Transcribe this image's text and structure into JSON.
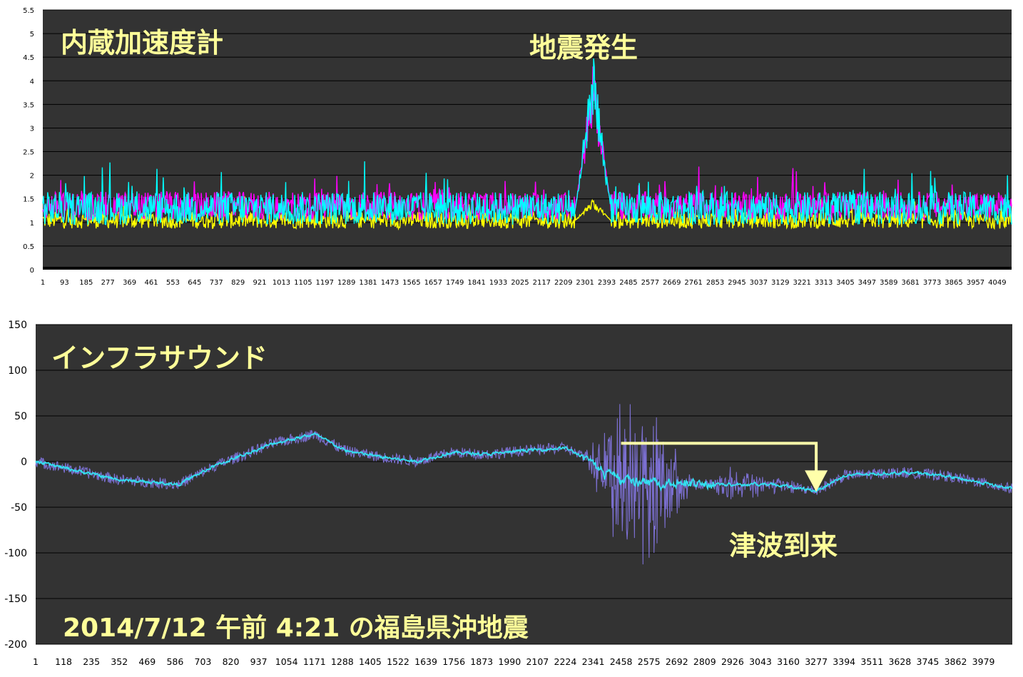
{
  "chart_data": [
    {
      "type": "line",
      "title": "内蔵加速度計",
      "annotations": [
        "地震発生"
      ],
      "ylim": [
        0,
        5.5
      ],
      "y_ticks": [
        "0",
        "0.5",
        "1",
        "1.5",
        "2",
        "2.5",
        "3",
        "3.5",
        "4",
        "4.5",
        "5",
        "5.5"
      ],
      "x_range": [
        1,
        4110
      ],
      "x_ticks": [
        "1",
        "93",
        "185",
        "277",
        "369",
        "461",
        "553",
        "645",
        "737",
        "829",
        "921",
        "1013",
        "1105",
        "1197",
        "1289",
        "1381",
        "1473",
        "1565",
        "1657",
        "1749",
        "1841",
        "1933",
        "2025",
        "2117",
        "2209",
        "2301",
        "2393",
        "2485",
        "2577",
        "2669",
        "2761",
        "2853",
        "2945",
        "3037",
        "3129",
        "3221",
        "3313",
        "3405",
        "3497",
        "3589",
        "3681",
        "3773",
        "3865",
        "3957",
        "4049"
      ],
      "grid": true,
      "series": [
        {
          "color": "#00ffff",
          "baseline": 1.3,
          "noise": 0.35,
          "event_peak": 4.6
        },
        {
          "color": "#ff00ff",
          "baseline": 1.35,
          "noise": 0.3,
          "event_peak": 4.4
        },
        {
          "color": "#ffff00",
          "baseline": 1.05,
          "noise": 0.18,
          "event_peak": 1.5
        }
      ],
      "event_x": [
        2260,
        2410
      ],
      "background": "#333333"
    },
    {
      "type": "line",
      "title": "インフラサウンド",
      "annotations": [
        "津波到来",
        "2014/7/12  午前 4:21 の福島県沖地震"
      ],
      "ylim": [
        -200,
        150
      ],
      "y_ticks": [
        "-200",
        "-150",
        "-100",
        "-50",
        "0",
        "50",
        "100",
        "150"
      ],
      "x_range": [
        1,
        4100
      ],
      "x_ticks": [
        "1",
        "118",
        "235",
        "352",
        "469",
        "586",
        "703",
        "820",
        "937",
        "1054",
        "1171",
        "1288",
        "1405",
        "1522",
        "1639",
        "1756",
        "1873",
        "1990",
        "2107",
        "2224",
        "2341",
        "2458",
        "2575",
        "2692",
        "2809",
        "2926",
        "3043",
        "3160",
        "3277",
        "3394",
        "3511",
        "3628",
        "3745",
        "3862",
        "3979"
      ],
      "grid": true,
      "trend_points": [
        [
          1,
          0
        ],
        [
          350,
          -20
        ],
        [
          600,
          -25
        ],
        [
          750,
          -5
        ],
        [
          1000,
          20
        ],
        [
          1171,
          30
        ],
        [
          1300,
          12
        ],
        [
          1450,
          5
        ],
        [
          1600,
          0
        ],
        [
          1750,
          10
        ],
        [
          1900,
          8
        ],
        [
          2050,
          12
        ],
        [
          2224,
          15
        ],
        [
          2300,
          5
        ],
        [
          2458,
          -20
        ],
        [
          2700,
          -25
        ],
        [
          2900,
          -25
        ],
        [
          3100,
          -25
        ],
        [
          3277,
          -32
        ],
        [
          3400,
          -15
        ],
        [
          3650,
          -12
        ],
        [
          3800,
          -15
        ],
        [
          3950,
          -22
        ],
        [
          4100,
          -30
        ]
      ],
      "series": [
        {
          "color": "#7b6fd0",
          "role": "raw",
          "noise": 6,
          "event_amplitude": 90
        },
        {
          "color": "#33e0f0",
          "role": "smoothed",
          "noise": 3
        }
      ],
      "event_x": [
        2300,
        2850
      ],
      "arrow": {
        "from": [
          2458,
          20
        ],
        "corner": [
          3277,
          20
        ],
        "to": [
          3277,
          -30
        ],
        "color": "#ffffaa"
      },
      "background": "#333333"
    }
  ]
}
